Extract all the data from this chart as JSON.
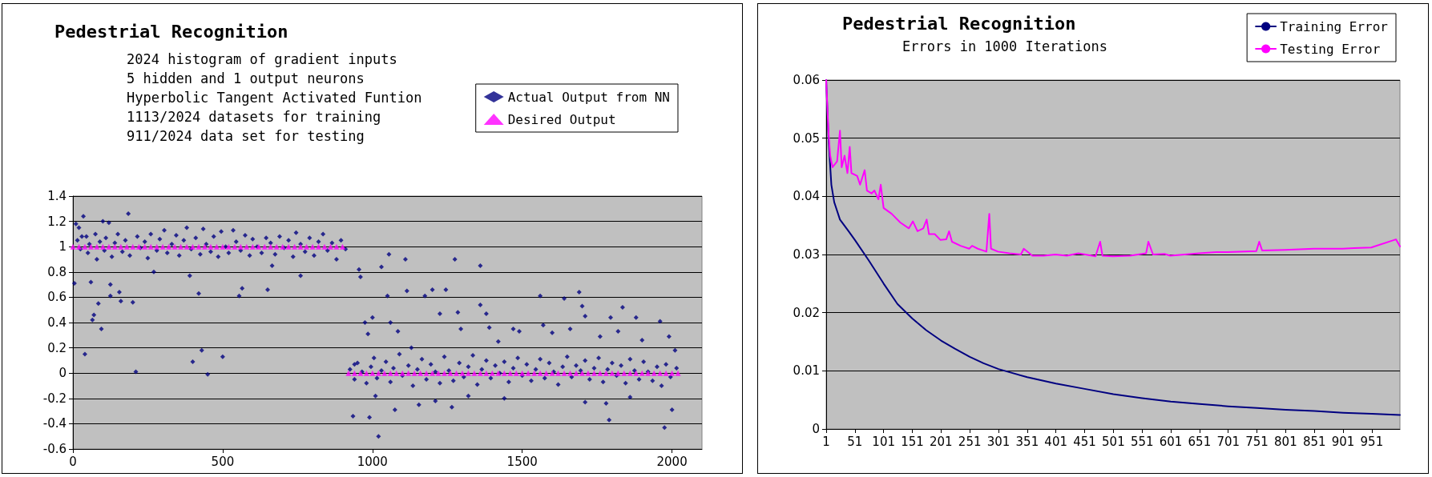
{
  "chart_data": [
    {
      "type": "scatter",
      "title": "Pedestrial Recognition",
      "subtitle": "2024 histogram of gradient inputs\n5 hidden and 1 output neurons\nHyperbolic Tangent Activated Funtion\n1113/2024 datasets for training\n911/2024 data set for testing",
      "xlim": [
        0,
        2100
      ],
      "xticks": [
        0,
        500,
        1000,
        1500,
        2000
      ],
      "ylim": [
        -0.6,
        1.4
      ],
      "yticks": [
        -0.6,
        -0.4,
        -0.2,
        0,
        0.2,
        0.4,
        0.6,
        0.8,
        1,
        1.2,
        1.4
      ],
      "grid": "y",
      "legend": "top right",
      "series": [
        {
          "name": "Actual Output from NN",
          "color": "#000080",
          "marker": "diamond",
          "x": [
            5,
            10,
            20,
            35,
            40,
            45,
            60,
            65,
            70,
            85,
            95,
            100,
            120,
            125,
            125,
            155,
            160,
            185,
            200,
            210,
            270,
            390,
            400,
            420,
            430,
            450,
            500,
            555,
            565,
            650,
            665,
            760,
            15,
            25,
            30,
            50,
            55,
            75,
            80,
            90,
            105,
            110,
            130,
            140,
            150,
            165,
            175,
            190,
            215,
            225,
            240,
            250,
            260,
            280,
            290,
            305,
            315,
            330,
            345,
            355,
            370,
            380,
            395,
            410,
            425,
            435,
            445,
            460,
            470,
            485,
            495,
            510,
            520,
            535,
            545,
            560,
            575,
            590,
            600,
            615,
            630,
            645,
            660,
            675,
            690,
            705,
            720,
            735,
            745,
            760,
            775,
            790,
            805,
            820,
            835,
            850,
            865,
            880,
            895,
            910,
            935,
            940,
            955,
            960,
            975,
            985,
            990,
            1000,
            1010,
            1020,
            1030,
            1050,
            1055,
            1060,
            1075,
            1085,
            1110,
            1115,
            1130,
            1155,
            1175,
            1200,
            1210,
            1225,
            1245,
            1265,
            1275,
            1285,
            1295,
            1320,
            1360,
            1360,
            1380,
            1390,
            1420,
            1440,
            1470,
            1490,
            1560,
            1570,
            1600,
            1640,
            1660,
            1690,
            1700,
            1710,
            1710,
            1760,
            1780,
            1790,
            1795,
            1820,
            1835,
            1860,
            1880,
            1900,
            1960,
            1975,
            1990,
            2000,
            2010,
            925,
            940,
            950,
            965,
            980,
            995,
            1005,
            1015,
            1030,
            1045,
            1060,
            1070,
            1090,
            1100,
            1120,
            1135,
            1150,
            1165,
            1180,
            1195,
            1210,
            1225,
            1240,
            1255,
            1270,
            1290,
            1305,
            1320,
            1335,
            1350,
            1365,
            1380,
            1395,
            1410,
            1425,
            1440,
            1455,
            1470,
            1485,
            1500,
            1515,
            1530,
            1545,
            1560,
            1575,
            1590,
            1605,
            1620,
            1635,
            1650,
            1665,
            1680,
            1695,
            1710,
            1725,
            1740,
            1755,
            1770,
            1785,
            1800,
            1815,
            1830,
            1845,
            1860,
            1875,
            1890,
            1905,
            1920,
            1935,
            1950,
            1965,
            1980,
            1995,
            2015
          ],
          "values": [
            0.71,
            1.18,
            1.15,
            1.24,
            0.15,
            1.08,
            0.72,
            0.42,
            0.46,
            0.55,
            0.35,
            1.2,
            1.19,
            0.7,
            0.61,
            0.64,
            0.57,
            1.26,
            0.56,
            0.01,
            0.8,
            0.77,
            0.09,
            0.63,
            0.18,
            -0.01,
            0.13,
            0.61,
            0.67,
            0.66,
            0.85,
            0.77,
            1.05,
            0.98,
            1.08,
            0.95,
            1.02,
            1.1,
            0.9,
            1.04,
            0.97,
            1.07,
            0.92,
            1.03,
            1.1,
            0.96,
            1.05,
            0.93,
            1.08,
            0.99,
            1.04,
            0.91,
            1.1,
            0.97,
            1.06,
            1.13,
            0.95,
            1.02,
            1.09,
            0.93,
            1.05,
            1.15,
            0.98,
            1.07,
            0.94,
            1.14,
            1.02,
            0.96,
            1.08,
            0.92,
            1.12,
            1.0,
            0.95,
            1.13,
            1.04,
            0.97,
            1.09,
            0.93,
            1.06,
            1.0,
            0.95,
            1.07,
            1.03,
            0.94,
            1.08,
            0.99,
            1.05,
            0.92,
            1.11,
            1.02,
            0.96,
            1.07,
            0.93,
            1.04,
            1.1,
            0.97,
            1.03,
            0.9,
            1.05,
            0.98,
            -0.34,
            0.07,
            0.82,
            0.76,
            0.4,
            0.31,
            -0.35,
            0.44,
            -0.18,
            -0.5,
            0.84,
            0.61,
            0.94,
            0.4,
            -0.29,
            0.33,
            0.9,
            0.65,
            0.2,
            -0.25,
            0.61,
            0.66,
            -0.22,
            0.47,
            0.66,
            -0.27,
            0.9,
            0.48,
            0.35,
            -0.18,
            0.85,
            0.54,
            0.47,
            0.36,
            0.25,
            -0.2,
            0.35,
            0.33,
            0.61,
            0.38,
            0.32,
            0.59,
            0.35,
            0.64,
            0.53,
            0.45,
            -0.23,
            0.29,
            -0.24,
            -0.37,
            0.44,
            0.33,
            0.52,
            -0.19,
            0.44,
            0.26,
            0.41,
            -0.43,
            0.29,
            -0.29,
            0.18,
            0.03,
            -0.05,
            0.08,
            0.01,
            -0.08,
            0.05,
            0.12,
            -0.04,
            0.02,
            0.09,
            -0.07,
            0.04,
            0.15,
            -0.02,
            0.06,
            -0.1,
            0.03,
            0.11,
            -0.05,
            0.07,
            0.01,
            -0.08,
            0.13,
            0.02,
            -0.06,
            0.08,
            -0.03,
            0.05,
            0.14,
            -0.09,
            0.03,
            0.1,
            -0.04,
            0.06,
            0.0,
            0.09,
            -0.07,
            0.04,
            0.12,
            -0.02,
            0.07,
            -0.06,
            0.03,
            0.11,
            -0.04,
            0.08,
            0.01,
            -0.09,
            0.05,
            0.13,
            -0.03,
            0.06,
            0.02,
            0.1,
            -0.05,
            0.04,
            0.12,
            -0.07,
            0.03,
            0.08,
            -0.02,
            0.06,
            -0.08,
            0.11,
            0.02,
            -0.05,
            0.09,
            0.01,
            -0.06,
            0.05,
            -0.1,
            0.07,
            -0.03,
            0.04
          ]
        },
        {
          "name": "Desired Output",
          "color": "#ff00ff",
          "marker": "triangle",
          "x": [
            0,
            20,
            40,
            60,
            80,
            100,
            120,
            140,
            160,
            180,
            200,
            220,
            240,
            260,
            280,
            300,
            320,
            340,
            360,
            380,
            400,
            420,
            440,
            460,
            480,
            500,
            520,
            540,
            560,
            580,
            600,
            620,
            640,
            660,
            680,
            700,
            720,
            740,
            760,
            780,
            800,
            820,
            840,
            860,
            880,
            900,
            920,
            940,
            960,
            980,
            1000,
            1020,
            1040,
            1060,
            1080,
            1100,
            1120,
            1140,
            1160,
            1180,
            1200,
            1220,
            1240,
            1260,
            1280,
            1300,
            1320,
            1340,
            1360,
            1380,
            1400,
            1420,
            1440,
            1460,
            1480,
            1500,
            1520,
            1540,
            1560,
            1580,
            1600,
            1620,
            1640,
            1660,
            1680,
            1700,
            1720,
            1740,
            1760,
            1780,
            1800,
            1820,
            1840,
            1860,
            1880,
            1900,
            1920,
            1940,
            1960,
            1980,
            2000,
            2020
          ],
          "values": [
            1,
            1,
            1,
            1,
            1,
            1,
            1,
            1,
            1,
            1,
            1,
            1,
            1,
            1,
            1,
            1,
            1,
            1,
            1,
            1,
            1,
            1,
            1,
            1,
            1,
            1,
            1,
            1,
            1,
            1,
            1,
            1,
            1,
            1,
            1,
            1,
            1,
            1,
            1,
            1,
            1,
            1,
            1,
            1,
            1,
            1,
            0,
            0,
            0,
            0,
            0,
            0,
            0,
            0,
            0,
            0,
            0,
            0,
            0,
            0,
            0,
            0,
            0,
            0,
            0,
            0,
            0,
            0,
            0,
            0,
            0,
            0,
            0,
            0,
            0,
            0,
            0,
            0,
            0,
            0,
            0,
            0,
            0,
            0,
            0,
            0,
            0,
            0,
            0,
            0,
            0,
            0,
            0,
            0,
            0,
            0,
            0,
            0,
            0,
            0,
            0,
            0
          ]
        }
      ]
    },
    {
      "type": "line",
      "title": "Pedestrial Recognition",
      "subtitle": "Errors in 1000 Iterations",
      "xlim": [
        1,
        1000
      ],
      "xticks": [
        1,
        51,
        101,
        151,
        201,
        251,
        301,
        351,
        401,
        451,
        501,
        551,
        601,
        651,
        701,
        751,
        801,
        851,
        901,
        951
      ],
      "ylim": [
        0,
        0.06
      ],
      "yticks": [
        0,
        0.01,
        0.02,
        0.03,
        0.04,
        0.05,
        0.06
      ],
      "grid": "y",
      "legend": "top right",
      "marker": "none",
      "series": [
        {
          "name": "Training Error",
          "color": "#000080",
          "x": [
            1,
            5,
            10,
            15,
            25,
            40,
            51,
            75,
            101,
            125,
            151,
            175,
            201,
            225,
            251,
            275,
            301,
            351,
            401,
            451,
            501,
            551,
            601,
            651,
            701,
            751,
            801,
            851,
            901,
            951,
            1000
          ],
          "values": [
            0.06,
            0.05,
            0.042,
            0.039,
            0.036,
            0.034,
            0.0325,
            0.029,
            0.025,
            0.0215,
            0.019,
            0.017,
            0.0152,
            0.0138,
            0.0124,
            0.0113,
            0.0103,
            0.0089,
            0.0078,
            0.0069,
            0.006,
            0.0053,
            0.0047,
            0.0043,
            0.0039,
            0.0036,
            0.0033,
            0.0031,
            0.0028,
            0.0026,
            0.0024
          ]
        },
        {
          "name": "Testing Error",
          "color": "#ff00ff",
          "x": [
            1,
            5,
            8,
            12,
            20,
            25,
            28,
            33,
            38,
            42,
            45,
            55,
            60,
            68,
            72,
            80,
            85,
            92,
            96,
            101,
            115,
            130,
            145,
            152,
            160,
            170,
            176,
            180,
            190,
            200,
            210,
            215,
            220,
            235,
            250,
            255,
            265,
            280,
            285,
            288,
            300,
            320,
            340,
            345,
            360,
            380,
            400,
            420,
            440,
            470,
            478,
            482,
            500,
            530,
            558,
            562,
            570,
            590,
            600,
            650,
            680,
            700,
            750,
            755,
            760,
            800,
            850,
            900,
            920,
            950,
            993,
            1000
          ],
          "values": [
            0.06,
            0.051,
            0.047,
            0.045,
            0.046,
            0.0513,
            0.045,
            0.047,
            0.044,
            0.0485,
            0.044,
            0.0435,
            0.042,
            0.0445,
            0.041,
            0.0405,
            0.041,
            0.0395,
            0.042,
            0.038,
            0.037,
            0.0355,
            0.0345,
            0.0357,
            0.034,
            0.0345,
            0.036,
            0.0335,
            0.0335,
            0.0325,
            0.0326,
            0.034,
            0.0322,
            0.0315,
            0.031,
            0.0315,
            0.031,
            0.0305,
            0.037,
            0.031,
            0.0305,
            0.0302,
            0.03,
            0.031,
            0.0298,
            0.0298,
            0.03,
            0.0298,
            0.0302,
            0.0297,
            0.0322,
            0.0298,
            0.0297,
            0.0298,
            0.0302,
            0.0322,
            0.03,
            0.0301,
            0.0298,
            0.0302,
            0.0304,
            0.0304,
            0.0306,
            0.0322,
            0.0307,
            0.0308,
            0.031,
            0.031,
            0.0311,
            0.0312,
            0.0326,
            0.0314
          ]
        }
      ]
    }
  ]
}
